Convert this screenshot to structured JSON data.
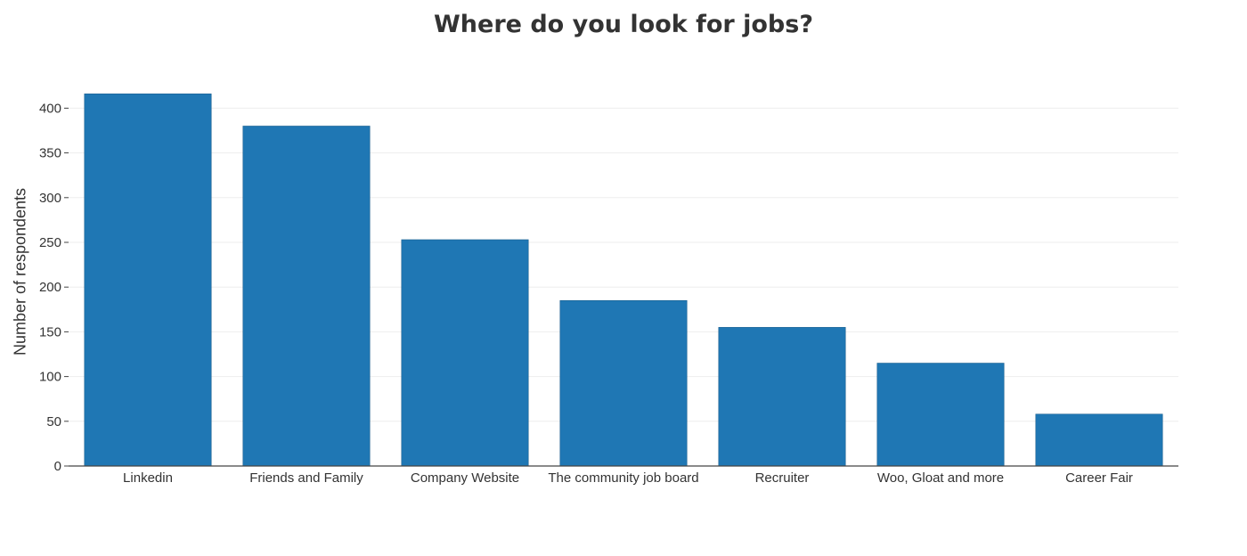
{
  "chart_data": {
    "type": "bar",
    "title": "Where do you look for jobs?",
    "xlabel": "",
    "ylabel": "Number of respondents",
    "categories": [
      "Linkedin",
      "Friends and Family",
      "Company Website",
      "The community job board",
      "Recruiter",
      "Woo, Gloat and more",
      "Career Fair"
    ],
    "values": [
      416,
      380,
      253,
      185,
      155,
      115,
      58
    ],
    "ylim": [
      0,
      420
    ],
    "yticks": [
      0,
      50,
      100,
      150,
      200,
      250,
      300,
      350,
      400
    ],
    "grid": true,
    "bar_color": "#1f77b4",
    "grid_color": "#eeeeee",
    "axis_color": "#444444"
  }
}
